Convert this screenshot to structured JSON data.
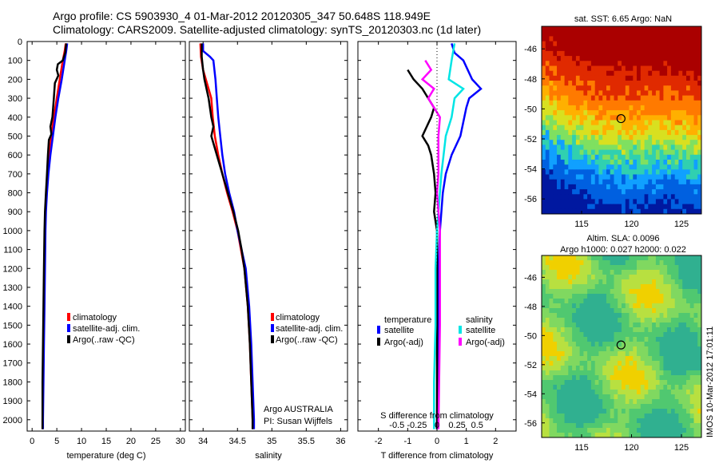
{
  "header": {
    "line1": "Argo profile: CS 5903930_4 01-Mar-2012 20120305_347 50.648S 118.949E",
    "line2": "Climatology: CARS2009. Satellite-adjusted climatology: synTS_20120303.nc (1d later)"
  },
  "colors": {
    "clim": "#ff0000",
    "sat": "#0000ff",
    "argo": "#000000",
    "sat_s": "#00e5e5",
    "argo_s": "#ff00ff"
  },
  "depth_axis": {
    "ylim": [
      0,
      2060
    ],
    "ticks": [
      0,
      100,
      200,
      300,
      400,
      500,
      600,
      700,
      800,
      900,
      1000,
      1100,
      1200,
      1300,
      1400,
      1500,
      1600,
      1700,
      1800,
      1900,
      2000
    ]
  },
  "chart_data": [
    {
      "type": "line",
      "xlabel": "temperature (deg C)",
      "xlim": [
        -1,
        31
      ],
      "xticks": [
        0,
        5,
        10,
        15,
        20,
        25,
        30
      ],
      "legend": [
        "climatology",
        "satellite-adj. clim.",
        "Argo(..raw -QC)"
      ],
      "series": [
        {
          "name": "climatology",
          "color": "clim",
          "points": [
            [
              6.8,
              10
            ],
            [
              6.6,
              50
            ],
            [
              6.2,
              100
            ],
            [
              5.6,
              200
            ],
            [
              5.0,
              300
            ],
            [
              4.4,
              400
            ],
            [
              3.9,
              500
            ],
            [
              3.5,
              600
            ],
            [
              3.2,
              700
            ],
            [
              2.9,
              800
            ],
            [
              2.7,
              900
            ],
            [
              2.6,
              1000
            ],
            [
              2.5,
              1200
            ],
            [
              2.4,
              1400
            ],
            [
              2.3,
              1600
            ],
            [
              2.2,
              1800
            ],
            [
              2.1,
              2000
            ],
            [
              2.1,
              2050
            ]
          ]
        },
        {
          "name": "satellite-adj. clim.",
          "color": "sat",
          "points": [
            [
              7.1,
              10
            ],
            [
              6.9,
              50
            ],
            [
              6.6,
              100
            ],
            [
              6.0,
              200
            ],
            [
              5.3,
              300
            ],
            [
              4.7,
              400
            ],
            [
              4.2,
              500
            ],
            [
              3.7,
              600
            ],
            [
              3.3,
              700
            ],
            [
              3.0,
              800
            ],
            [
              2.8,
              900
            ],
            [
              2.7,
              1000
            ],
            [
              2.6,
              1200
            ],
            [
              2.5,
              1400
            ],
            [
              2.4,
              1600
            ],
            [
              2.3,
              1800
            ],
            [
              2.2,
              2000
            ],
            [
              2.2,
              2050
            ]
          ]
        },
        {
          "name": "Argo(..raw -QC)",
          "color": "argo",
          "points": [
            [
              6.9,
              10
            ],
            [
              6.7,
              60
            ],
            [
              6.2,
              100
            ],
            [
              5.2,
              120
            ],
            [
              5.0,
              150
            ],
            [
              5.3,
              180
            ],
            [
              4.6,
              220
            ],
            [
              4.4,
              300
            ],
            [
              4.1,
              400
            ],
            [
              3.7,
              450
            ],
            [
              3.9,
              490
            ],
            [
              3.4,
              520
            ],
            [
              3.2,
              600
            ],
            [
              3.0,
              700
            ],
            [
              2.8,
              800
            ],
            [
              2.6,
              900
            ],
            [
              2.5,
              1000
            ],
            [
              2.4,
              1200
            ],
            [
              2.3,
              1400
            ],
            [
              2.2,
              1600
            ],
            [
              2.1,
              1800
            ],
            [
              2.1,
              2000
            ],
            [
              2.1,
              2050
            ]
          ]
        }
      ]
    },
    {
      "type": "line",
      "xlabel": "salinity",
      "xlim": [
        33.8,
        36.1
      ],
      "xticks": [
        34,
        34.5,
        35,
        35.5,
        36
      ],
      "legend": [
        "climatology",
        "satellite-adj. clim.",
        "Argo(..raw -QC)"
      ],
      "annotation": [
        "Argo AUSTRALIA",
        "PI: Susan Wijffels"
      ],
      "series": [
        {
          "name": "climatology",
          "color": "clim",
          "points": [
            [
              33.96,
              10
            ],
            [
              33.97,
              80
            ],
            [
              34.0,
              150
            ],
            [
              34.08,
              250
            ],
            [
              34.12,
              300
            ],
            [
              34.14,
              400
            ],
            [
              34.17,
              500
            ],
            [
              34.22,
              600
            ],
            [
              34.28,
              700
            ],
            [
              34.35,
              800
            ],
            [
              34.43,
              900
            ],
            [
              34.5,
              1000
            ],
            [
              34.55,
              1100
            ],
            [
              34.6,
              1200
            ],
            [
              34.65,
              1400
            ],
            [
              34.68,
              1600
            ],
            [
              34.7,
              1800
            ],
            [
              34.72,
              2000
            ],
            [
              34.72,
              2050
            ]
          ]
        },
        {
          "name": "satellite-adj. clim.",
          "color": "sat",
          "points": [
            [
              34.0,
              10
            ],
            [
              34.0,
              50
            ],
            [
              34.1,
              80
            ],
            [
              34.15,
              100
            ],
            [
              34.18,
              200
            ],
            [
              34.2,
              300
            ],
            [
              34.22,
              400
            ],
            [
              34.25,
              500
            ],
            [
              34.28,
              600
            ],
            [
              34.32,
              700
            ],
            [
              34.38,
              800
            ],
            [
              34.45,
              900
            ],
            [
              34.5,
              1000
            ],
            [
              34.56,
              1100
            ],
            [
              34.62,
              1200
            ],
            [
              34.67,
              1400
            ],
            [
              34.7,
              1600
            ],
            [
              34.72,
              1800
            ],
            [
              34.74,
              2000
            ],
            [
              34.74,
              2050
            ]
          ]
        },
        {
          "name": "Argo(..raw -QC)",
          "color": "argo",
          "points": [
            [
              33.98,
              10
            ],
            [
              33.98,
              80
            ],
            [
              34.0,
              150
            ],
            [
              34.02,
              200
            ],
            [
              34.08,
              300
            ],
            [
              34.12,
              400
            ],
            [
              34.15,
              450
            ],
            [
              34.12,
              500
            ],
            [
              34.2,
              600
            ],
            [
              34.28,
              700
            ],
            [
              34.36,
              800
            ],
            [
              34.44,
              900
            ],
            [
              34.51,
              1000
            ],
            [
              34.56,
              1100
            ],
            [
              34.6,
              1200
            ],
            [
              34.65,
              1400
            ],
            [
              34.68,
              1600
            ],
            [
              34.7,
              1800
            ],
            [
              34.72,
              2000
            ],
            [
              34.72,
              2050
            ]
          ]
        }
      ]
    },
    {
      "type": "line",
      "xlabel": "T difference from climatology",
      "xlabel_top": "S difference from climatology",
      "xlim": [
        -2.7,
        2.7
      ],
      "xticks": [
        -2,
        -1,
        0,
        1,
        2
      ],
      "xticks_top": [
        {
          "v": -0.5,
          "label": "-0.5"
        },
        {
          "v": -0.25,
          "label": "-0.25"
        },
        {
          "v": 0,
          "label": "0"
        },
        {
          "v": 0.25,
          "label": "0.25"
        },
        {
          "v": 0.5,
          "label": "0.5"
        }
      ],
      "legend_temperature": {
        "title": "temperature",
        "items": [
          "satellite",
          "Argo(-adj)"
        ]
      },
      "legend_salinity": {
        "title": "salinity",
        "items": [
          "satellite",
          "Argo(-adj)"
        ]
      },
      "series": [
        {
          "name": "satellite",
          "group": "temperature",
          "color": "sat",
          "points": [
            [
              0.5,
              10
            ],
            [
              0.6,
              60
            ],
            [
              0.9,
              100
            ],
            [
              1.2,
              200
            ],
            [
              1.5,
              250
            ],
            [
              1.1,
              300
            ],
            [
              1.0,
              350
            ],
            [
              0.8,
              500
            ],
            [
              0.5,
              600
            ],
            [
              0.3,
              700
            ],
            [
              0.2,
              800
            ],
            [
              0.15,
              900
            ],
            [
              0.1,
              1000
            ],
            [
              0.05,
              1200
            ],
            [
              0.05,
              1400
            ],
            [
              0.0,
              2050
            ]
          ]
        },
        {
          "name": "Argo(-adj)",
          "group": "temperature",
          "color": "argo",
          "points": [
            [
              -1.0,
              150
            ],
            [
              -0.8,
              200
            ],
            [
              -0.5,
              250
            ],
            [
              -0.3,
              300
            ],
            [
              -0.1,
              350
            ],
            [
              -0.2,
              400
            ],
            [
              -0.5,
              500
            ],
            [
              -0.3,
              550
            ],
            [
              -0.2,
              600
            ],
            [
              -0.1,
              700
            ],
            [
              -0.05,
              800
            ],
            [
              -0.1,
              900
            ],
            [
              0.0,
              1000
            ],
            [
              0.0,
              2050
            ]
          ]
        },
        {
          "name": "satellite",
          "group": "salinity",
          "color": "sat_s",
          "points": [
            [
              0.6,
              10
            ],
            [
              0.5,
              100
            ],
            [
              0.4,
              200
            ],
            [
              0.9,
              250
            ],
            [
              0.6,
              300
            ],
            [
              0.5,
              400
            ],
            [
              0.3,
              500
            ],
            [
              0.15,
              700
            ],
            [
              0.05,
              900
            ],
            [
              0.0,
              1000
            ],
            [
              -0.05,
              1200
            ],
            [
              -0.05,
              1500
            ],
            [
              -0.1,
              1800
            ],
            [
              -0.1,
              2050
            ]
          ]
        },
        {
          "name": "Argo(-adj)",
          "group": "salinity",
          "color": "argo_s",
          "points": [
            [
              -0.4,
              100
            ],
            [
              -0.2,
              150
            ],
            [
              -0.5,
              200
            ],
            [
              -0.1,
              250
            ],
            [
              -0.3,
              300
            ],
            [
              -0.1,
              350
            ],
            [
              0.1,
              400
            ],
            [
              0.05,
              500
            ],
            [
              0.05,
              700
            ],
            [
              0.0,
              800
            ],
            [
              0.1,
              1000
            ],
            [
              0.1,
              1500
            ],
            [
              0.05,
              2050
            ]
          ]
        }
      ]
    },
    {
      "type": "heatmap",
      "title": "sat. SST: 6.65 Argo: NaN",
      "xlim": [
        111,
        127
      ],
      "ylim": [
        -57,
        -44.5
      ],
      "xticks": [
        115,
        120,
        125
      ],
      "yticks": [
        -46,
        -48,
        -50,
        -52,
        -54,
        -56
      ],
      "marker": [
        118.949,
        -50.648
      ],
      "field": "SST"
    },
    {
      "type": "heatmap",
      "title": "Altim. SLA: 0.0096",
      "subtitle": "Argo h1000: 0.027 h2000: 0.022",
      "xlim": [
        111,
        127
      ],
      "ylim": [
        -57,
        -44.5
      ],
      "xticks": [
        115,
        120,
        125
      ],
      "yticks": [
        -46,
        -48,
        -50,
        -52,
        -54,
        -56
      ],
      "marker": [
        118.949,
        -50.648
      ],
      "field": "SLA"
    }
  ],
  "footer_stamp": "IMOS 10-Mar-2012 17:01:11"
}
